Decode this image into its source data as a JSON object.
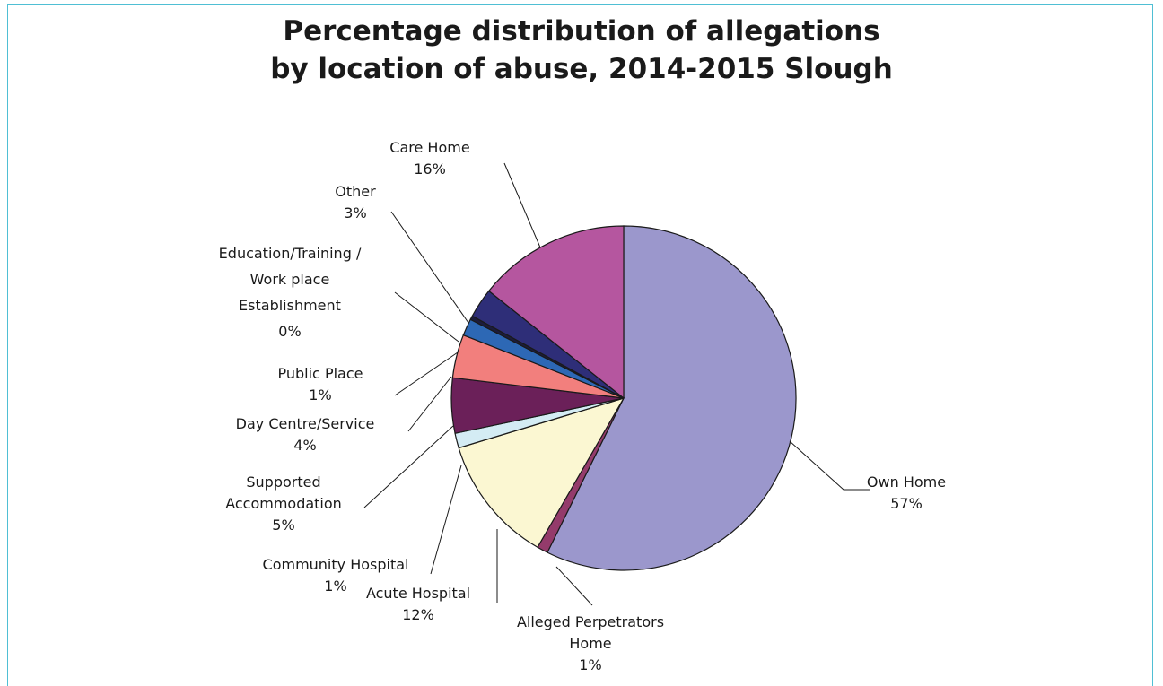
{
  "chart_data": {
    "type": "pie",
    "title_line1": "Percentage distribution of allegations",
    "title_line2": "by location of abuse, 2014-2015 Slough",
    "slices": [
      {
        "label": "Own Home",
        "value": 57,
        "value_label": "57%",
        "color": "#9b97cc"
      },
      {
        "label": "Alleged Perpetrators Home",
        "value": 1,
        "value_label": "1%",
        "color": "#943b6b"
      },
      {
        "label": "Acute Hospital",
        "value": 12,
        "value_label": "12%",
        "color": "#fbf7d2"
      },
      {
        "label": "Community Hospital",
        "value": 1,
        "value_label": "1%",
        "color": "#d4ecf4"
      },
      {
        "label": "Supported Accommodation",
        "value": 5,
        "value_label": "5%",
        "color": "#6b2059"
      },
      {
        "label": "Day Centre/Service",
        "value": 4,
        "value_label": "4%",
        "color": "#f27f7d"
      },
      {
        "label": "Public Place",
        "value": 1,
        "value_label": "1%",
        "color": "#2d68b5"
      },
      {
        "label": "Education/Training / Work place Establishment",
        "value": 0,
        "value_label": "0%",
        "color": "#1c1c3c"
      },
      {
        "label": "Other",
        "value": 3,
        "value_label": "3%",
        "color": "#2e2e78"
      },
      {
        "label": "Care Home",
        "value": 16,
        "value_label": "16%",
        "color": "#b5569f"
      }
    ]
  }
}
